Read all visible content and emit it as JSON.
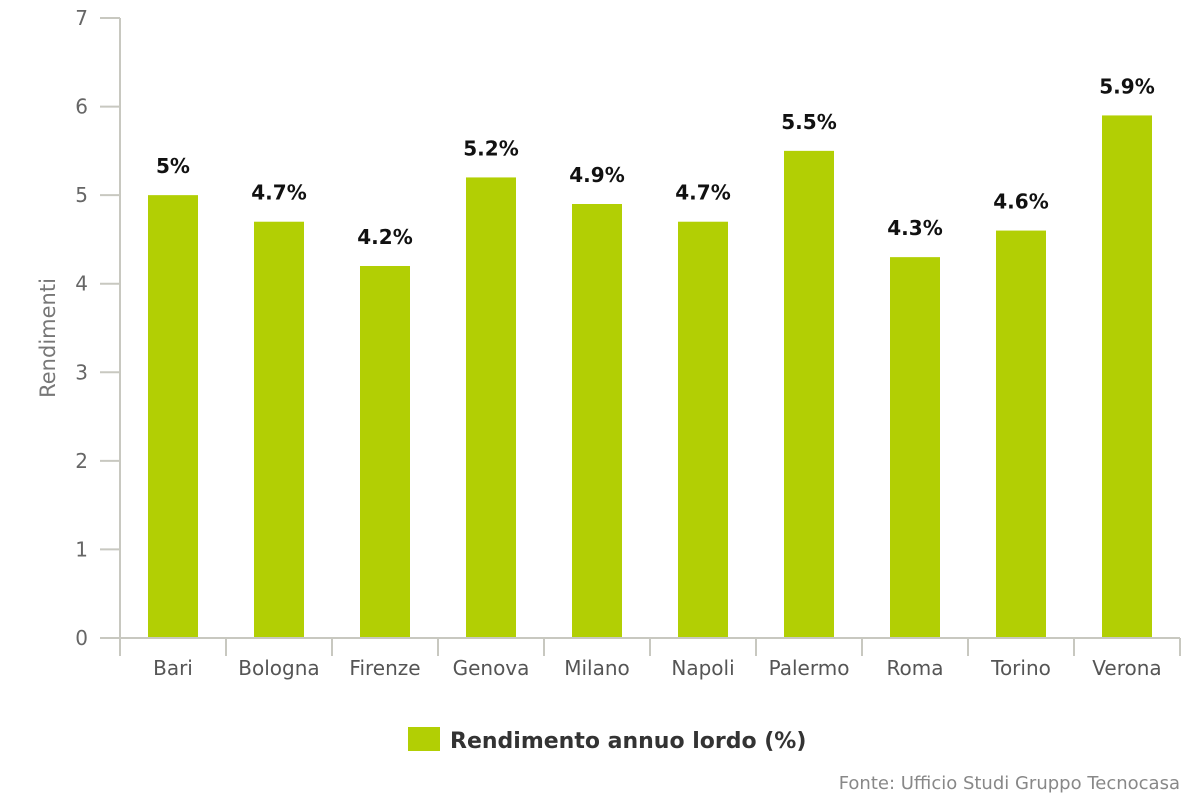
{
  "chart_data": {
    "type": "bar",
    "categories": [
      "Bari",
      "Bologna",
      "Firenze",
      "Genova",
      "Milano",
      "Napoli",
      "Palermo",
      "Roma",
      "Torino",
      "Verona"
    ],
    "series": [
      {
        "name": "Rendimento annuo lordo (%)",
        "values": [
          5.0,
          4.7,
          4.2,
          5.2,
          4.9,
          4.7,
          5.5,
          4.3,
          4.6,
          5.9
        ],
        "data_labels": [
          "5%",
          "4.7%",
          "4.2%",
          "5.2%",
          "4.9%",
          "4.7%",
          "5.5%",
          "4.3%",
          "4.6%",
          "5.9%"
        ],
        "color": "#b2cf04"
      }
    ],
    "ylabel": "Rendimenti",
    "xlabel": "",
    "ylim": [
      0,
      7
    ],
    "yticks": [
      0,
      1,
      2,
      3,
      4,
      5,
      6,
      7
    ],
    "grid": false,
    "legend_position": "bottom-center",
    "source": "Fonte: Ufficio Studi Gruppo Tecnocasa"
  }
}
